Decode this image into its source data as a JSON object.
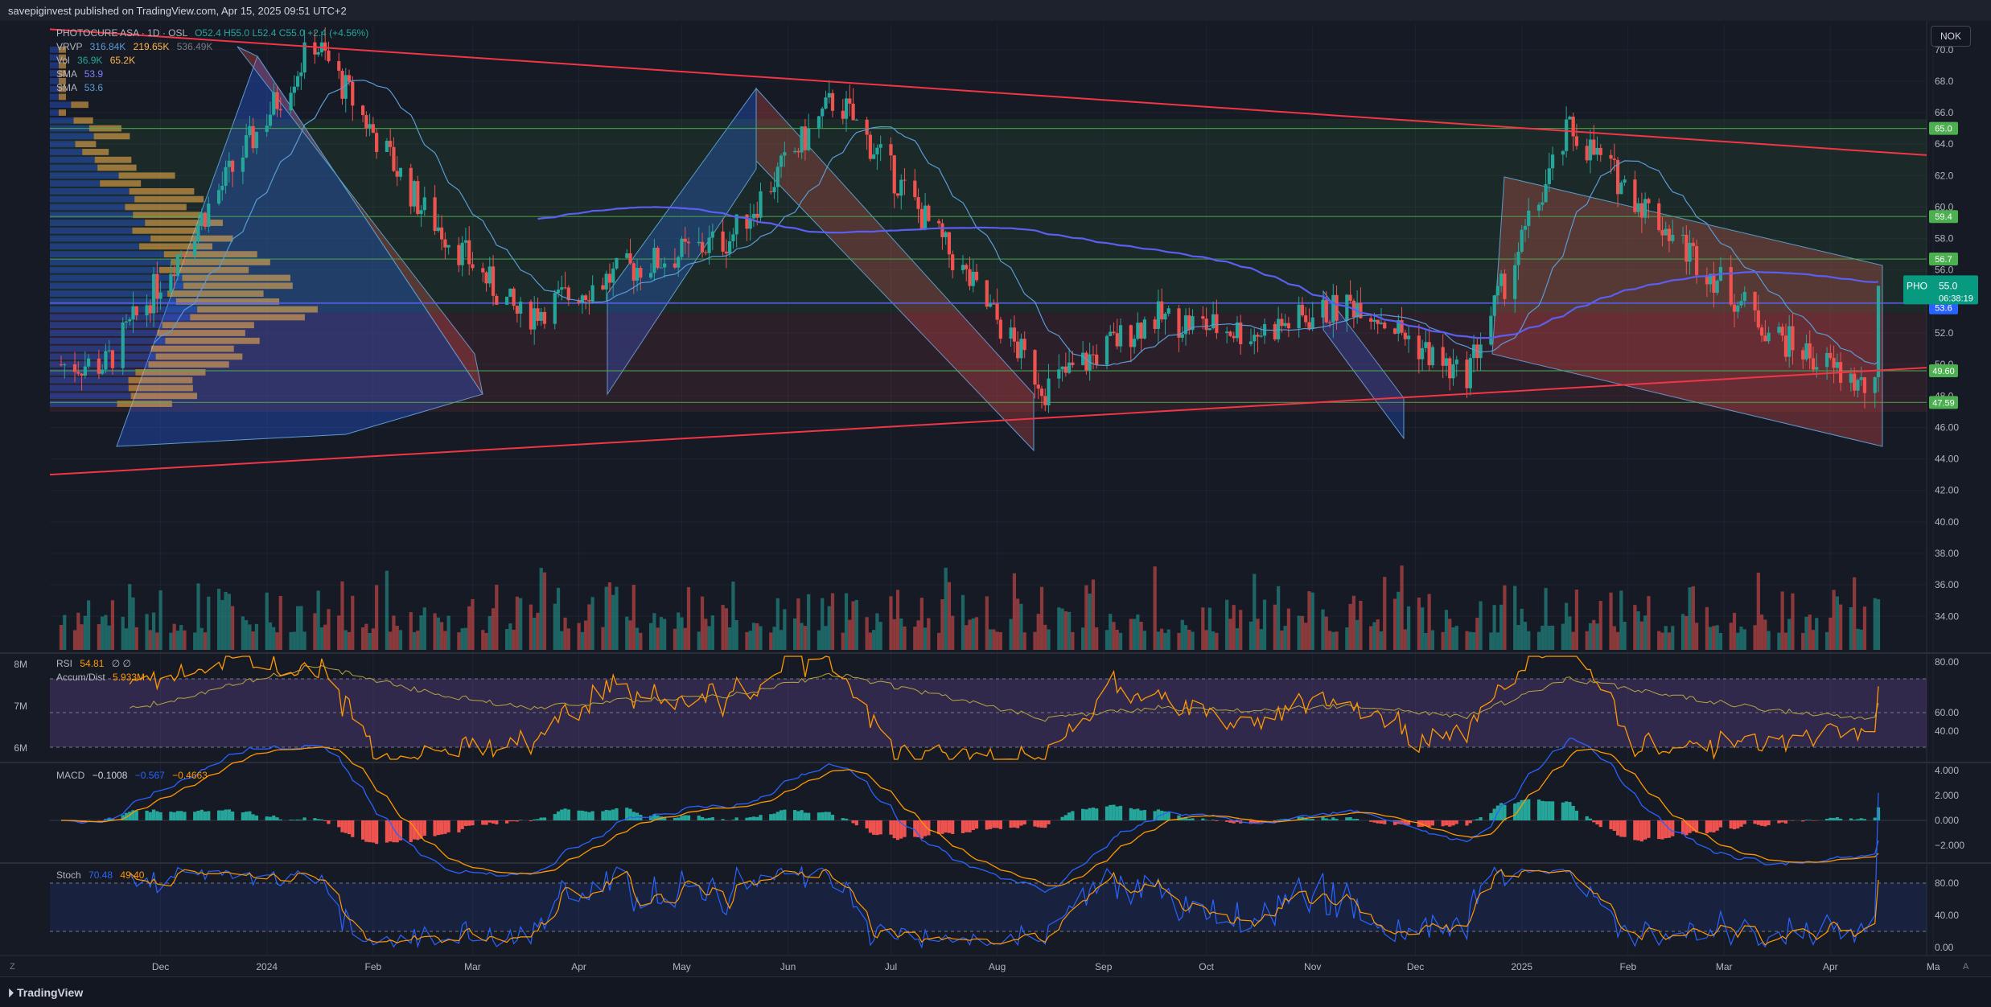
{
  "header": {
    "published": "savepiginvest published on TradingView.com, Apr 15, 2025 09:51 UTC+2"
  },
  "currency_button": "NOK",
  "footer": {
    "brand": "TradingView",
    "left_corner": "Z",
    "right_corner": "A"
  },
  "legend": {
    "title": "PHOTOCURE ASA · 1D · OSL",
    "ohlc": "O52.4 H55.0 L52.4 C55.0 +2.4 (+4.56%)",
    "vrvp": {
      "label": "VRVP",
      "v1": "316.84K",
      "v2": "219.65K",
      "v3": "536.49K"
    },
    "vol": {
      "label": "Vol",
      "v1": "36.9K",
      "v2": "65.2K"
    },
    "sma1": {
      "label": "SMA",
      "v": "53.9"
    },
    "sma2": {
      "label": "SMA",
      "v": "53.6"
    }
  },
  "colors": {
    "background": "#161a25",
    "up": "#26a69a",
    "down": "#ef5350",
    "trendline": "#f23645",
    "sma_long": "#5b5ff0",
    "sma_short": "#5b9bd5",
    "support_band": "#4caf50",
    "rsi_band": "#7e57c2",
    "stoch_k": "#2962ff",
    "stoch_d": "#ff9800"
  },
  "price_axis": {
    "ticks": [
      "70.0",
      "68.0",
      "66.0",
      "64.0",
      "62.0",
      "60.0",
      "58.0",
      "56.0",
      "54.0",
      "52.0",
      "50.0",
      "48.0",
      "46.00",
      "44.00",
      "42.00",
      "40.00",
      "38.00",
      "36.00",
      "34.00"
    ],
    "levels": [
      {
        "value": "65.0",
        "color": "#4caf50"
      },
      {
        "value": "59.4",
        "color": "#4caf50"
      },
      {
        "value": "56.7",
        "color": "#4caf50"
      },
      {
        "value": "53.9",
        "color": "#5b5ff0"
      },
      {
        "value": "53.6",
        "color": "#2962ff"
      },
      {
        "value": "49.60",
        "color": "#4caf50"
      },
      {
        "value": "47.59",
        "color": "#4caf50"
      }
    ],
    "last": {
      "symbol": "PHO",
      "value": "55.0",
      "countdown": "06:38:19"
    }
  },
  "time_axis": [
    "Dec",
    "2024",
    "Feb",
    "Mar",
    "Apr",
    "May",
    "Jun",
    "Jul",
    "Aug",
    "Sep",
    "Oct",
    "Nov",
    "Dec",
    "2025",
    "Feb",
    "Mar",
    "Apr",
    "Ma"
  ],
  "volume_axis": [
    "8M",
    "7M",
    "6M"
  ],
  "rsi": {
    "label": "RSI",
    "value": "54.81",
    "extra": "∅ ∅",
    "ad_label": "Accum/Dist",
    "ad_value": "5.933M",
    "ticks": [
      "80.00",
      "60.00",
      "40.00"
    ]
  },
  "macd": {
    "label": "MACD",
    "v1": "−0.1008",
    "v2": "−0.567",
    "v3": "−0.4663",
    "ticks": [
      "4.000",
      "2.000",
      "0.000",
      "−2.000"
    ]
  },
  "stoch": {
    "label": "Stoch",
    "k": "70.48",
    "d": "49.40",
    "ticks": [
      "80.00",
      "40.00",
      "0.00"
    ]
  },
  "chart_data": {
    "type": "candlestick",
    "symbol": "PHOTOCURE ASA",
    "exchange": "OSL",
    "interval": "1D",
    "x_range": [
      "Nov 2023",
      "Apr 15, 2025"
    ],
    "ylim": [
      33.5,
      71.5
    ],
    "key_points": [
      {
        "date": "Nov 2023",
        "close": 50.0
      },
      {
        "date": "Dec 2023",
        "close": 60.0
      },
      {
        "date": "Jan 2024",
        "close": 70.5
      },
      {
        "date": "Feb 2024",
        "close": 60.0
      },
      {
        "date": "Mar 2024",
        "close": 53.0
      },
      {
        "date": "Apr 2024",
        "close": 56.0
      },
      {
        "date": "May 2024",
        "close": 58.0
      },
      {
        "date": "Jun 2024",
        "close": 67.0
      },
      {
        "date": "Jul 2024",
        "close": 58.0
      },
      {
        "date": "Aug 2024",
        "close": 48.5
      },
      {
        "date": "Sep 2024",
        "close": 53.0
      },
      {
        "date": "Oct 2024",
        "close": 52.0
      },
      {
        "date": "Nov 2024",
        "close": 54.0
      },
      {
        "date": "Dec 2024",
        "close": 49.0
      },
      {
        "date": "Jan 2025",
        "close": 65.0
      },
      {
        "date": "Feb 2025",
        "close": 58.0
      },
      {
        "date": "Mar 2025",
        "close": 52.0
      },
      {
        "date": "Apr 2025",
        "close": 48.0
      },
      {
        "date": "Apr 15, 2025",
        "close": 55.0
      }
    ],
    "horizontal_levels": [
      65.0,
      59.4,
      56.7,
      49.6,
      47.59
    ],
    "sma_values": [
      53.9,
      53.6
    ],
    "last_close": 55.0,
    "change": "+2.4 (+4.56%)",
    "indicators": {
      "rsi": 54.81,
      "accum_dist": "5.933M",
      "macd": [
        -0.1008,
        -0.567,
        -0.4663
      ],
      "stoch": [
        70.48,
        49.4
      ]
    }
  }
}
